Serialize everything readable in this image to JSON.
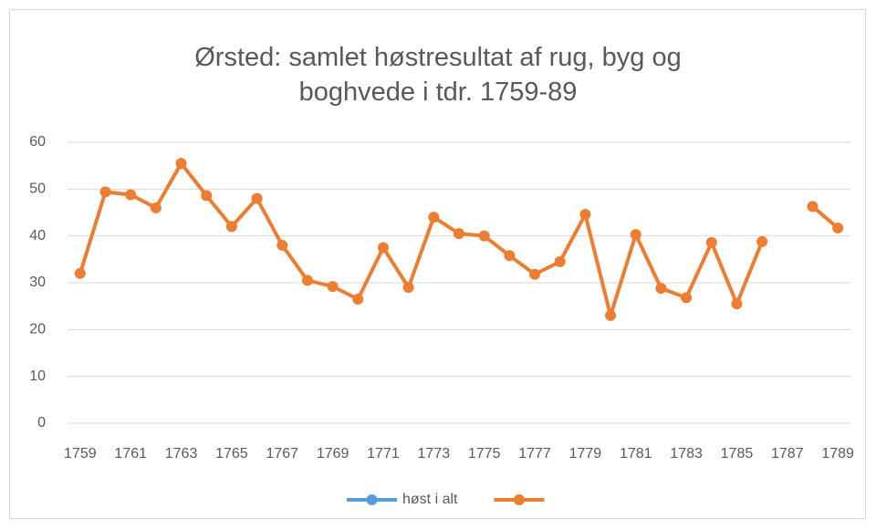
{
  "chart_data": {
    "type": "line",
    "title": "Ørsted: samlet høstresultat af rug, byg og boghvede i tdr. 1759-89",
    "categories": [
      "1759",
      null,
      "1761",
      null,
      "1763",
      null,
      "1765",
      null,
      "1767",
      null,
      "1769",
      null,
      "1771",
      null,
      "1773",
      null,
      "1775",
      null,
      "1777",
      null,
      "1779",
      null,
      "1781",
      null,
      "1783",
      null,
      "1785",
      null,
      "1787",
      null,
      "1789"
    ],
    "series": [
      {
        "name": "høst i alt",
        "color": "#5b9bd5",
        "values": [
          null,
          null,
          null,
          null,
          null,
          null,
          null,
          null,
          null,
          null,
          null,
          null,
          null,
          null,
          null,
          null,
          null,
          null,
          null,
          null,
          null,
          null,
          null,
          null,
          null,
          null,
          null,
          null,
          null,
          null,
          null
        ]
      },
      {
        "color": "#ed7d31",
        "values": [
          32,
          49.4,
          48.8,
          46,
          55.5,
          48.6,
          42,
          48,
          38,
          30.5,
          29.2,
          26.5,
          37.5,
          29,
          44,
          40.5,
          40,
          35.8,
          31.8,
          34.5,
          44.6,
          23,
          40.3,
          28.8,
          26.8,
          38.6,
          25.5,
          38.8,
          null,
          46.3,
          41.7
        ]
      }
    ],
    "ylim": [
      0,
      60
    ],
    "yticks": [
      0,
      10,
      20,
      30,
      40,
      50,
      60
    ],
    "grid": true,
    "legend": "bottom"
  }
}
